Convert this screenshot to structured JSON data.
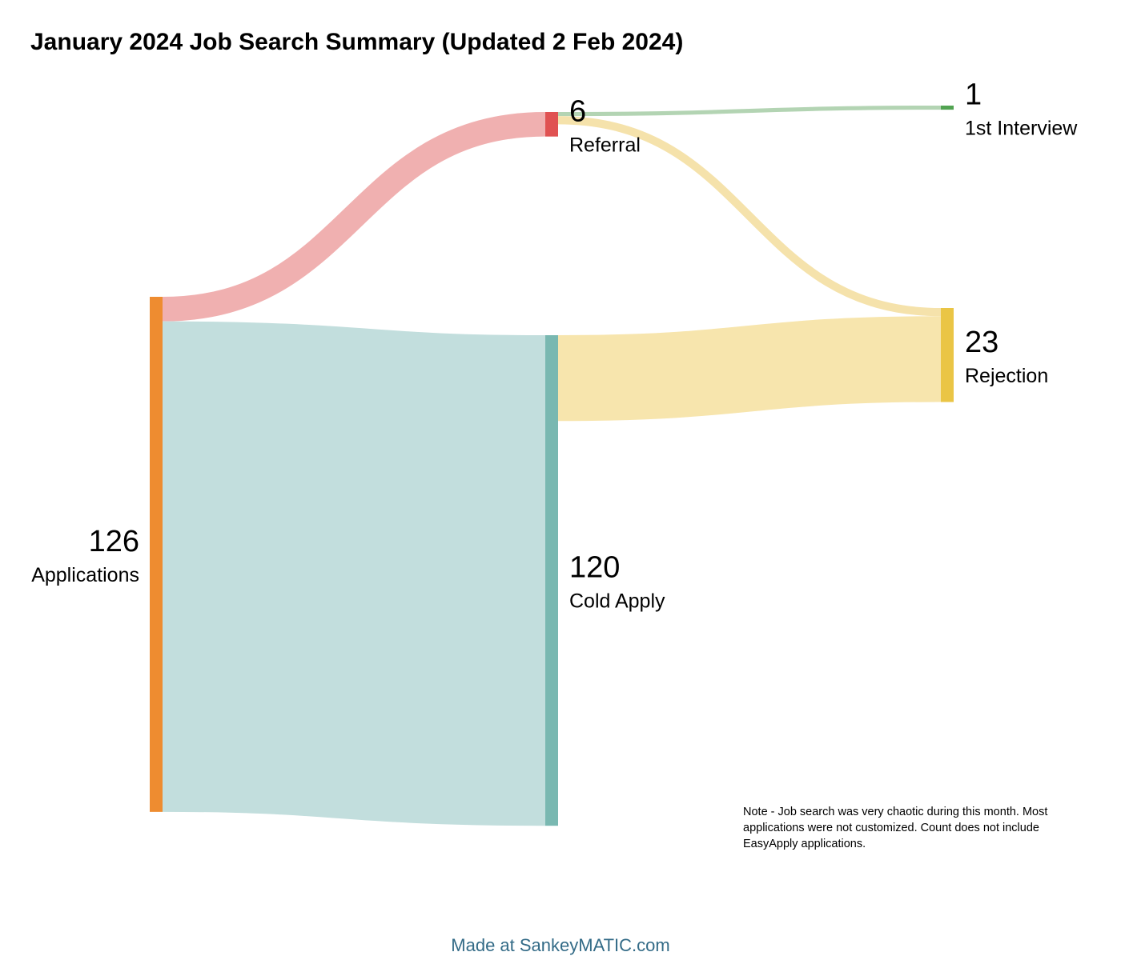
{
  "title": "January 2024 Job Search Summary (Updated 2 Feb 2024)",
  "note_lines": [
    "Note - Job search was very chaotic during this month. Most",
    "applications were not customized. Count does not include",
    "EasyApply applications."
  ],
  "credit": "Made at SankeyMATIC.com",
  "colors": {
    "credit": "#336b87"
  },
  "chart_data": {
    "type": "sankey",
    "title": "January 2024 Job Search Summary (Updated 2 Feb 2024)",
    "nodes": [
      {
        "id": "applications",
        "label": "Applications",
        "value": 126,
        "value_label": "126",
        "color": "#ee8c30"
      },
      {
        "id": "referral",
        "label": "Referral",
        "value": 6,
        "value_label": "6",
        "color": "#e05252"
      },
      {
        "id": "cold",
        "label": "Cold Apply",
        "value": 120,
        "value_label": "120",
        "color": "#79b8b1"
      },
      {
        "id": "interview",
        "label": "1st Interview",
        "value": 1,
        "value_label": "1",
        "color": "#52a352"
      },
      {
        "id": "rejection",
        "label": "Rejection",
        "value": 23,
        "value_label": "23",
        "color": "#eac545"
      }
    ],
    "links": [
      {
        "source": "applications",
        "target": "referral",
        "value": 6,
        "color": "#f0b0b0"
      },
      {
        "source": "applications",
        "target": "cold",
        "value": 120,
        "color": "#c2dedd"
      },
      {
        "source": "referral",
        "target": "interview",
        "value": 1,
        "color": "#b3d4b3"
      },
      {
        "source": "referral",
        "target": "rejection",
        "value": 2,
        "color": "#f5e2ab"
      },
      {
        "source": "cold",
        "target": "rejection",
        "value": 21,
        "color": "#f7e5ad"
      }
    ]
  }
}
